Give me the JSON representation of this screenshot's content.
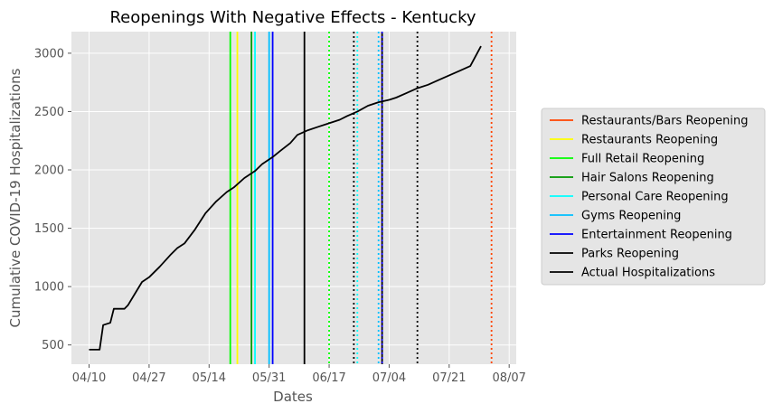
{
  "chart_data": {
    "type": "line",
    "title": "Reopenings With Negative Effects - Kentucky",
    "xlabel": "Dates",
    "ylabel": "Cumulative COVID-19 Hospitalizations",
    "xlim": [
      "2020-04-05",
      "2020-08-09"
    ],
    "ylim": [
      335,
      3185
    ],
    "grid": true,
    "legend_placement": "right",
    "x_ticks": [
      {
        "date": "2020-04-10",
        "label": "04/10"
      },
      {
        "date": "2020-04-27",
        "label": "04/27"
      },
      {
        "date": "2020-05-14",
        "label": "05/14"
      },
      {
        "date": "2020-05-31",
        "label": "05/31"
      },
      {
        "date": "2020-06-17",
        "label": "06/17"
      },
      {
        "date": "2020-07-04",
        "label": "07/04"
      },
      {
        "date": "2020-07-21",
        "label": "07/21"
      },
      {
        "date": "2020-08-07",
        "label": "08/07"
      }
    ],
    "y_ticks": [
      500,
      1000,
      1500,
      2000,
      2500,
      3000
    ],
    "series": [
      {
        "name": "Actual Hospitalizations",
        "color": "#000000",
        "points": [
          {
            "x": "2020-04-10",
            "y": 460
          },
          {
            "x": "2020-04-13",
            "y": 460
          },
          {
            "x": "2020-04-14",
            "y": 670
          },
          {
            "x": "2020-04-16",
            "y": 690
          },
          {
            "x": "2020-04-17",
            "y": 810
          },
          {
            "x": "2020-04-20",
            "y": 810
          },
          {
            "x": "2020-04-21",
            "y": 840
          },
          {
            "x": "2020-04-23",
            "y": 940
          },
          {
            "x": "2020-04-25",
            "y": 1040
          },
          {
            "x": "2020-04-27",
            "y": 1080
          },
          {
            "x": "2020-04-30",
            "y": 1170
          },
          {
            "x": "2020-05-03",
            "y": 1270
          },
          {
            "x": "2020-05-05",
            "y": 1330
          },
          {
            "x": "2020-05-07",
            "y": 1370
          },
          {
            "x": "2020-05-10",
            "y": 1490
          },
          {
            "x": "2020-05-13",
            "y": 1630
          },
          {
            "x": "2020-05-16",
            "y": 1730
          },
          {
            "x": "2020-05-19",
            "y": 1810
          },
          {
            "x": "2020-05-21",
            "y": 1850
          },
          {
            "x": "2020-05-24",
            "y": 1930
          },
          {
            "x": "2020-05-27",
            "y": 1990
          },
          {
            "x": "2020-05-29",
            "y": 2050
          },
          {
            "x": "2020-06-01",
            "y": 2110
          },
          {
            "x": "2020-06-03",
            "y": 2160
          },
          {
            "x": "2020-06-06",
            "y": 2230
          },
          {
            "x": "2020-06-08",
            "y": 2300
          },
          {
            "x": "2020-06-11",
            "y": 2340
          },
          {
            "x": "2020-06-14",
            "y": 2370
          },
          {
            "x": "2020-06-17",
            "y": 2400
          },
          {
            "x": "2020-06-20",
            "y": 2430
          },
          {
            "x": "2020-06-22",
            "y": 2460
          },
          {
            "x": "2020-06-25",
            "y": 2500
          },
          {
            "x": "2020-06-28",
            "y": 2550
          },
          {
            "x": "2020-07-01",
            "y": 2580
          },
          {
            "x": "2020-07-04",
            "y": 2600
          },
          {
            "x": "2020-07-06",
            "y": 2620
          },
          {
            "x": "2020-07-09",
            "y": 2660
          },
          {
            "x": "2020-07-12",
            "y": 2700
          },
          {
            "x": "2020-07-15",
            "y": 2730
          },
          {
            "x": "2020-07-18",
            "y": 2770
          },
          {
            "x": "2020-07-21",
            "y": 2810
          },
          {
            "x": "2020-07-24",
            "y": 2850
          },
          {
            "x": "2020-07-27",
            "y": 2890
          },
          {
            "x": "2020-07-30",
            "y": 3060
          }
        ]
      }
    ],
    "vlines": [
      {
        "date": "2020-05-20",
        "color": "#00ff00",
        "style": "solid"
      },
      {
        "date": "2020-05-22",
        "color": "#ffff00",
        "style": "solid"
      },
      {
        "date": "2020-05-26",
        "color": "#009900",
        "style": "solid"
      },
      {
        "date": "2020-05-27",
        "color": "#00ffff",
        "style": "solid"
      },
      {
        "date": "2020-05-31",
        "color": "#00bfff",
        "style": "solid"
      },
      {
        "date": "2020-06-01",
        "color": "#0000ff",
        "style": "solid"
      },
      {
        "date": "2020-06-10",
        "color": "#000000",
        "style": "solid"
      },
      {
        "date": "2020-06-17",
        "color": "#00ff00",
        "style": "dotted"
      },
      {
        "date": "2020-06-24",
        "color": "#000000",
        "style": "dotted"
      },
      {
        "date": "2020-06-25",
        "color": "#00ffff",
        "style": "dotted"
      },
      {
        "date": "2020-07-01",
        "color": "#00bfff",
        "style": "dotted"
      },
      {
        "date": "2020-07-02",
        "color": "#000000",
        "style": "solid"
      },
      {
        "date": "2020-07-02",
        "color": "#ff4500",
        "style": "dotted"
      },
      {
        "date": "2020-07-02",
        "color": "#0000ff",
        "style": "dotted"
      },
      {
        "date": "2020-07-12",
        "color": "#000000",
        "style": "dotted"
      },
      {
        "date": "2020-08-02",
        "color": "#ff4500",
        "style": "dotted"
      }
    ],
    "legend": [
      {
        "label": "Restaurants/Bars Reopening",
        "color": "#ff4500"
      },
      {
        "label": "Restaurants Reopening",
        "color": "#ffff00"
      },
      {
        "label": "Full Retail Reopening",
        "color": "#00ff00"
      },
      {
        "label": "Hair Salons Reopening",
        "color": "#009900"
      },
      {
        "label": "Personal Care Reopening",
        "color": "#00ffff"
      },
      {
        "label": "Gyms Reopening",
        "color": "#00bfff"
      },
      {
        "label": "Entertainment Reopening",
        "color": "#0000ff"
      },
      {
        "label": "Parks Reopening",
        "color": "#000000"
      },
      {
        "label": "Actual Hospitalizations",
        "color": "#000000"
      }
    ]
  }
}
